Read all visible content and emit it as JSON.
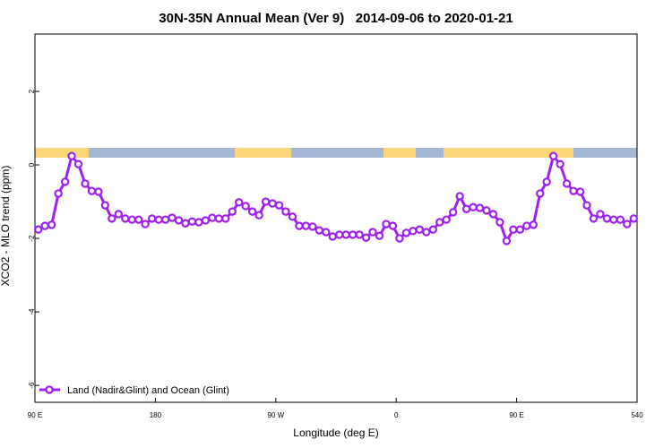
{
  "chart_data": {
    "type": "line",
    "title": "30N-35N Annual Mean (Ver 9)   2014-09-06 to 2020-01-21",
    "x_label": "Longitude (deg E)",
    "y_label": "XCO2 - MLO trend (ppm)",
    "xlim": [
      90,
      540
    ],
    "ylim": [
      -6.46,
      3.56
    ],
    "xticks": [
      {
        "value": 90,
        "label": "90 E"
      },
      180,
      {
        "value": 270,
        "label": "90 W"
      },
      {
        "value": 360,
        "label": "0"
      },
      {
        "value": 450,
        "label": "90 E"
      },
      540
    ],
    "yticks": [
      -6,
      -4,
      -2,
      0,
      2
    ],
    "legend": "bottom-left",
    "x": [
      92.5,
      97.5,
      102.5,
      107.5,
      112.5,
      117.5,
      122.5,
      127.5,
      132.5,
      137.5,
      142.5,
      147.5,
      152.5,
      157.5,
      162.5,
      167.5,
      172.5,
      177.5,
      182.5,
      187.5,
      192.5,
      197.5,
      202.5,
      207.5,
      212.5,
      217.5,
      222.5,
      227.5,
      232.5,
      237.5,
      242.5,
      247.5,
      252.5,
      257.5,
      262.5,
      267.5,
      272.5,
      277.5,
      282.5,
      287.5,
      292.5,
      297.5,
      302.5,
      307.5,
      312.5,
      317.5,
      322.5,
      327.5,
      332.5,
      337.5,
      342.5,
      347.5,
      352.5,
      357.5,
      362.5,
      367.5,
      372.5,
      377.5,
      382.5,
      387.5,
      392.5,
      397.5,
      402.5,
      407.5,
      412.5,
      417.5,
      422.5,
      427.5,
      432.5,
      437.5,
      442.5,
      447.5,
      452.5,
      457.5,
      462.5,
      467.5,
      472.5,
      477.5,
      482.5,
      487.5,
      492.5,
      497.5,
      502.5,
      507.5,
      512.5,
      517.5,
      522.5,
      527.5,
      532.5,
      537.5
    ],
    "series": [
      {
        "name": "Land (Nadir&Glint) and Ocean (Glint)",
        "color": "#a020f0",
        "values": [
          -1.76,
          -1.66,
          -1.63,
          -0.78,
          -0.46,
          0.24,
          0.02,
          -0.51,
          -0.71,
          -0.73,
          -1.1,
          -1.46,
          -1.34,
          -1.46,
          -1.49,
          -1.49,
          -1.61,
          -1.46,
          -1.49,
          -1.49,
          -1.44,
          -1.51,
          -1.59,
          -1.54,
          -1.56,
          -1.51,
          -1.44,
          -1.46,
          -1.46,
          -1.27,
          -1.02,
          -1.12,
          -1.27,
          -1.37,
          -1.0,
          -1.05,
          -1.1,
          -1.27,
          -1.41,
          -1.66,
          -1.66,
          -1.68,
          -1.78,
          -1.83,
          -1.95,
          -1.9,
          -1.9,
          -1.9,
          -1.9,
          -1.98,
          -1.83,
          -1.93,
          -1.61,
          -1.66,
          -2.0,
          -1.85,
          -1.8,
          -1.76,
          -1.83,
          -1.76,
          -1.56,
          -1.49,
          -1.29,
          -0.85,
          -1.2,
          -1.15,
          -1.17,
          -1.24,
          -1.34,
          -1.56,
          -2.07,
          -1.76,
          -1.76,
          -1.66,
          -1.63,
          -0.78,
          -0.46,
          0.24,
          0.02,
          -0.51,
          -0.71,
          -0.73,
          -1.1,
          -1.46,
          -1.34,
          -1.46,
          -1.49,
          -1.49,
          -1.61,
          -1.46
        ]
      }
    ]
  }
}
